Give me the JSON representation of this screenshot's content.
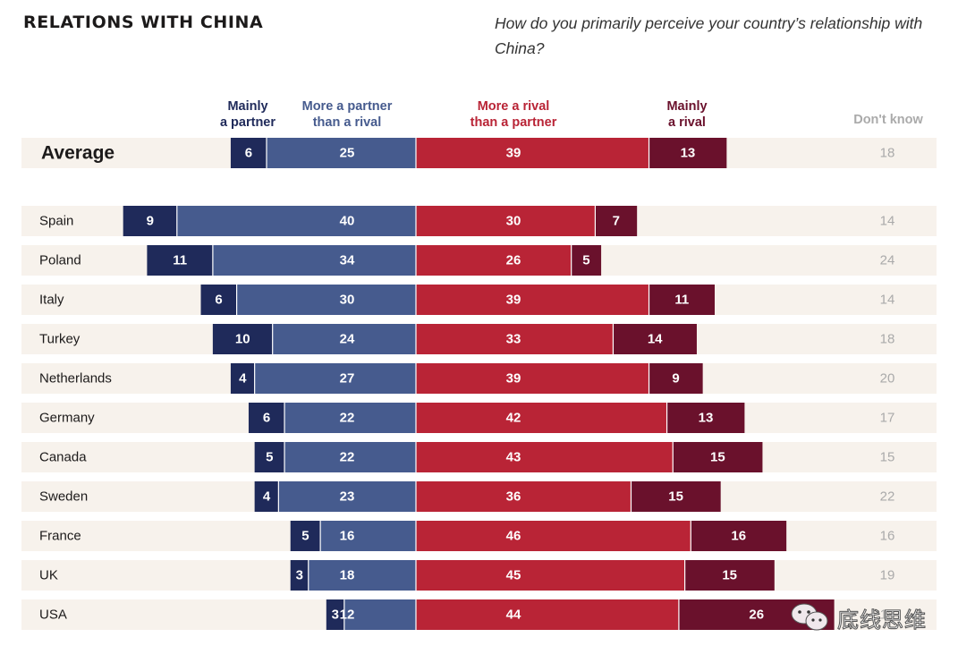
{
  "header": {
    "title": "RELATIONS WITH CHINA",
    "question": "How do you primarily perceive your country’s relationship with China?"
  },
  "colors": {
    "mainly_partner": "#1f2a5a",
    "more_partner": "#465b8e",
    "more_rival": "#b92436",
    "mainly_rival": "#6a112c",
    "dont_know_text": "#aaaaaa",
    "row_background": "#f7f2ec"
  },
  "watermark": {
    "text": "底线思维"
  },
  "chart_data": {
    "type": "bar",
    "subtype": "diverging-stacked-horizontal",
    "title": "RELATIONS WITH CHINA",
    "subtitle": "How do you primarily perceive your country’s relationship with China?",
    "unit": "percent",
    "legend": [
      {
        "key": "mainly_partner",
        "label_lines": [
          "Mainly",
          "a partner"
        ]
      },
      {
        "key": "more_partner",
        "label_lines": [
          "More a partner",
          "than a rival"
        ]
      },
      {
        "key": "more_rival",
        "label_lines": [
          "More a rival",
          "than a partner"
        ]
      },
      {
        "key": "mainly_rival",
        "label_lines": [
          "Mainly",
          "a rival"
        ]
      },
      {
        "key": "dont_know",
        "label_lines": [
          "Don't know"
        ]
      }
    ],
    "categories": [
      "Average",
      "Spain",
      "Poland",
      "Italy",
      "Turkey",
      "Netherlands",
      "Germany",
      "Canada",
      "Sweden",
      "France",
      "UK",
      "USA"
    ],
    "series": [
      {
        "name": "Mainly a partner",
        "key": "mainly_partner",
        "values": [
          6,
          9,
          11,
          6,
          10,
          4,
          6,
          5,
          4,
          5,
          3,
          3
        ]
      },
      {
        "name": "More a partner than a rival",
        "key": "more_partner",
        "values": [
          25,
          40,
          34,
          30,
          24,
          27,
          22,
          22,
          23,
          16,
          18,
          12
        ]
      },
      {
        "name": "More a rival than a partner",
        "key": "more_rival",
        "values": [
          39,
          30,
          26,
          39,
          33,
          39,
          42,
          43,
          36,
          46,
          45,
          44
        ]
      },
      {
        "name": "Mainly a rival",
        "key": "mainly_rival",
        "values": [
          13,
          7,
          5,
          11,
          14,
          9,
          13,
          15,
          15,
          16,
          15,
          26
        ]
      },
      {
        "name": "Don't know",
        "key": "dont_know",
        "values": [
          18,
          14,
          24,
          14,
          18,
          20,
          17,
          15,
          22,
          16,
          19,
          18
        ]
      }
    ],
    "xlabel": "",
    "ylabel": "",
    "grid": false,
    "legend_position": "top"
  }
}
